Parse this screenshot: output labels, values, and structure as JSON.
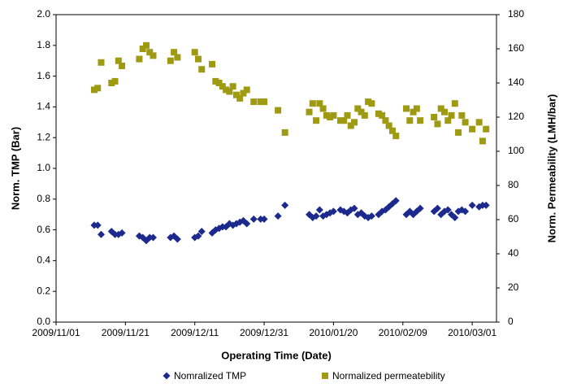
{
  "chart_data": {
    "type": "scatter",
    "x_label": "Operating Time (Date)",
    "y_label": "Norm. TMP (Bar)",
    "y2_label": "Norm. Permeability (LMH/bar)",
    "x": [
      "2009/11/12",
      "2009/11/13",
      "2009/11/14",
      "2009/11/17",
      "2009/11/18",
      "2009/11/19",
      "2009/11/20",
      "2009/11/25",
      "2009/11/26",
      "2009/11/27",
      "2009/11/28",
      "2009/11/29",
      "2009/12/04",
      "2009/12/05",
      "2009/12/06",
      "2009/12/11",
      "2009/12/12",
      "2009/12/13",
      "2009/12/16",
      "2009/12/17",
      "2009/12/18",
      "2009/12/19",
      "2009/12/20",
      "2009/12/21",
      "2009/12/22",
      "2009/12/23",
      "2009/12/24",
      "2009/12/25",
      "2009/12/26",
      "2009/12/28",
      "2009/12/30",
      "2009/12/31",
      "2010/01/04",
      "2010/01/06",
      "2010/01/13",
      "2010/01/14",
      "2010/01/15",
      "2010/01/16",
      "2010/01/17",
      "2010/01/18",
      "2010/01/19",
      "2010/01/20",
      "2010/01/22",
      "2010/01/23",
      "2010/01/24",
      "2010/01/25",
      "2010/01/26",
      "2010/01/27",
      "2010/01/28",
      "2010/01/29",
      "2010/01/30",
      "2010/01/31",
      "2010/02/02",
      "2010/02/03",
      "2010/02/04",
      "2010/02/05",
      "2010/02/06",
      "2010/02/07",
      "2010/02/10",
      "2010/02/11",
      "2010/02/12",
      "2010/02/13",
      "2010/02/14",
      "2010/02/18",
      "2010/02/19",
      "2010/02/20",
      "2010/02/21",
      "2010/02/22",
      "2010/02/23",
      "2010/02/24",
      "2010/02/25",
      "2010/02/26",
      "2010/02/27",
      "2010/03/01",
      "2010/03/03",
      "2010/03/04",
      "2010/03/05"
    ],
    "series": [
      {
        "name": "Nomralized TMP",
        "color": "#1c2a8e",
        "marker": "diamond",
        "values": [
          0.63,
          0.63,
          0.57,
          0.59,
          0.57,
          0.57,
          0.58,
          0.56,
          0.55,
          0.53,
          0.55,
          0.55,
          0.55,
          0.56,
          0.54,
          0.55,
          0.56,
          0.59,
          0.58,
          0.6,
          0.61,
          0.62,
          0.62,
          0.64,
          0.63,
          0.64,
          0.65,
          0.66,
          0.64,
          0.67,
          0.67,
          0.67,
          0.69,
          0.76,
          0.7,
          0.68,
          0.69,
          0.73,
          0.69,
          0.7,
          0.71,
          0.72,
          0.73,
          0.72,
          0.71,
          0.73,
          0.74,
          0.7,
          0.71,
          0.69,
          0.68,
          0.69,
          0.7,
          0.72,
          0.73,
          0.75,
          0.77,
          0.79,
          0.7,
          0.72,
          0.7,
          0.72,
          0.74,
          0.72,
          0.74,
          0.7,
          0.72,
          0.73,
          0.7,
          0.68,
          0.72,
          0.73,
          0.72,
          0.76,
          0.75,
          0.76,
          0.76
        ]
      },
      {
        "name": "Normalized permeatebility",
        "color": "#9e9a12",
        "marker": "square",
        "axis": "y2",
        "values": [
          136,
          137,
          152,
          140,
          141,
          153,
          150,
          154,
          160,
          162,
          158,
          156,
          153,
          158,
          155,
          158,
          154,
          148,
          151,
          141,
          140,
          138,
          136,
          135,
          138,
          133,
          131,
          134,
          136,
          129,
          129,
          129,
          124,
          111,
          123,
          128,
          118,
          128,
          125,
          121,
          120,
          121,
          118,
          118,
          121,
          115,
          117,
          125,
          123,
          121,
          129,
          128,
          122,
          121,
          118,
          115,
          112,
          109,
          125,
          118,
          123,
          125,
          118,
          120,
          116,
          125,
          123,
          118,
          121,
          128,
          111,
          121,
          117,
          113,
          117,
          106,
          113
        ]
      }
    ],
    "xlim": [
      "2009/11/01",
      "2010/03/08"
    ],
    "xticks": [
      "2009/11/01",
      "2009/11/21",
      "2009/12/11",
      "2009/12/31",
      "2010/01/20",
      "2010/02/09",
      "2010/03/01"
    ],
    "ylim": [
      0,
      2
    ],
    "yticks": [
      {
        "value": 0,
        "label": "0.0"
      },
      {
        "value": 0.2,
        "label": "0.2"
      },
      {
        "value": 0.4,
        "label": "0.4"
      },
      {
        "value": 0.6,
        "label": "0.6"
      },
      {
        "value": 0.8,
        "label": "0.8"
      },
      {
        "value": 1,
        "label": "1.0"
      },
      {
        "value": 1.2,
        "label": "1.2"
      },
      {
        "value": 1.4,
        "label": "1.4"
      },
      {
        "value": 1.6,
        "label": "1.6"
      },
      {
        "value": 1.8,
        "label": "1.8"
      },
      {
        "value": 2,
        "label": "2.0"
      }
    ],
    "y2lim": [
      0,
      180
    ],
    "y2ticks": [
      0,
      20,
      40,
      60,
      80,
      100,
      120,
      140,
      160,
      180
    ],
    "grid": false,
    "legend": "bottom"
  }
}
